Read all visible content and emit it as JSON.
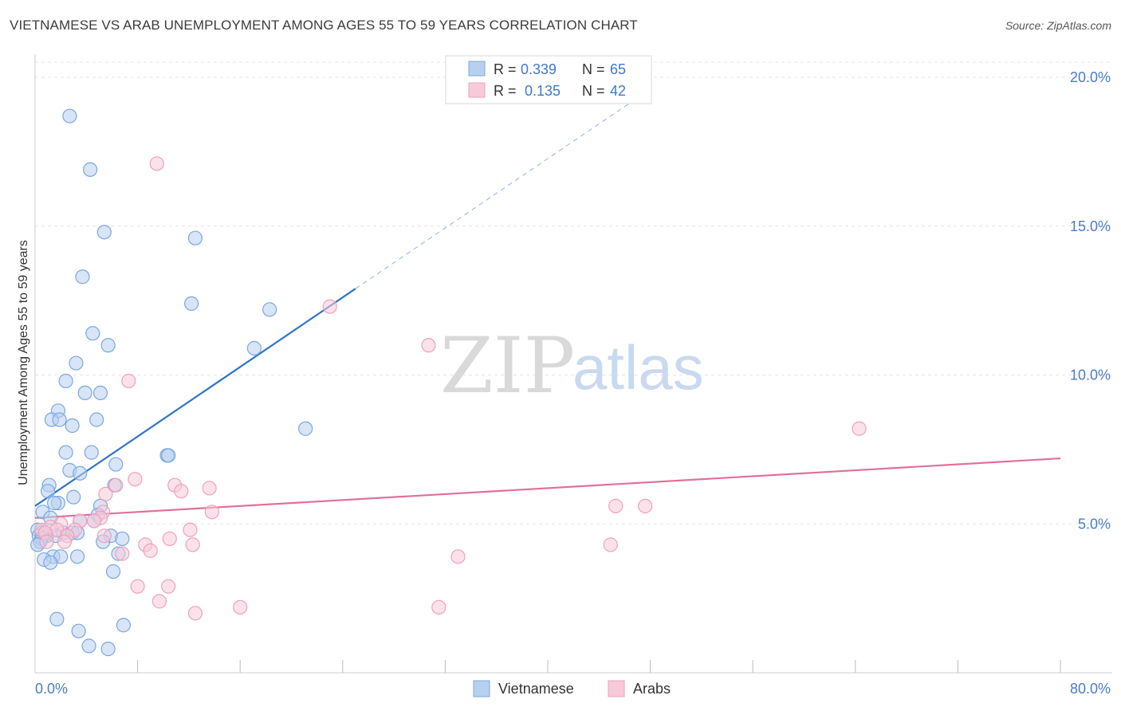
{
  "chart_data": {
    "type": "scatter",
    "title": "VIETNAMESE VS ARAB UNEMPLOYMENT AMONG AGES 55 TO 59 YEARS CORRELATION CHART",
    "source": "Source: ZipAtlas.com",
    "ylabel": "Unemployment Among Ages 55 to 59 years",
    "xlabel": "",
    "xlim": [
      0,
      80
    ],
    "ylim": [
      0,
      20
    ],
    "x_tick_labels": [
      "0.0%",
      "80.0%"
    ],
    "y_ticks": [
      5,
      10,
      15,
      20
    ],
    "y_tick_labels": [
      "5.0%",
      "10.0%",
      "15.0%",
      "20.0%"
    ],
    "watermark": {
      "zip": "ZIP",
      "atlas": "atlas"
    },
    "legend_stats": [
      {
        "r_label": "R = ",
        "r_value": "0.339",
        "n_label": "N = ",
        "n_value": "65"
      },
      {
        "r_label": "R = ",
        "r_value": "0.135",
        "n_label": "N = ",
        "n_value": "42"
      }
    ],
    "series": [
      {
        "name": "Vietnamese",
        "color": "#7aa7e0",
        "fill": "#b8d0f0",
        "line_color": "#2e74c9",
        "trend": {
          "x0": 0,
          "y0": 5.6,
          "x1": 25,
          "y1": 12.9,
          "dash_to_x": 48,
          "dash_to_y": 19.6
        },
        "points": [
          [
            2.7,
            18.7
          ],
          [
            4.3,
            16.9
          ],
          [
            5.4,
            14.8
          ],
          [
            12.5,
            14.6
          ],
          [
            3.7,
            13.3
          ],
          [
            12.2,
            12.4
          ],
          [
            18.3,
            12.2
          ],
          [
            4.5,
            11.4
          ],
          [
            5.7,
            11.0
          ],
          [
            17.1,
            10.9
          ],
          [
            3.2,
            10.4
          ],
          [
            2.4,
            9.8
          ],
          [
            5.1,
            9.4
          ],
          [
            3.9,
            9.4
          ],
          [
            1.8,
            8.8
          ],
          [
            1.3,
            8.5
          ],
          [
            1.9,
            8.5
          ],
          [
            4.8,
            8.5
          ],
          [
            2.9,
            8.3
          ],
          [
            21.1,
            8.2
          ],
          [
            2.4,
            7.4
          ],
          [
            4.4,
            7.4
          ],
          [
            10.3,
            7.3
          ],
          [
            10.4,
            7.3
          ],
          [
            6.3,
            7.0
          ],
          [
            2.7,
            6.8
          ],
          [
            3.5,
            6.7
          ],
          [
            1.1,
            6.3
          ],
          [
            1.0,
            6.1
          ],
          [
            6.2,
            6.3
          ],
          [
            3.0,
            5.9
          ],
          [
            1.8,
            5.7
          ],
          [
            1.5,
            5.7
          ],
          [
            5.1,
            5.6
          ],
          [
            0.6,
            5.4
          ],
          [
            1.2,
            5.2
          ],
          [
            4.9,
            5.3
          ],
          [
            4.6,
            5.1
          ],
          [
            3.5,
            5.1
          ],
          [
            0.2,
            4.8
          ],
          [
            0.5,
            4.7
          ],
          [
            2.2,
            4.7
          ],
          [
            2.9,
            4.7
          ],
          [
            3.3,
            4.7
          ],
          [
            0.9,
            4.6
          ],
          [
            1.6,
            4.6
          ],
          [
            0.3,
            4.6
          ],
          [
            5.9,
            4.6
          ],
          [
            0.5,
            4.5
          ],
          [
            6.8,
            4.5
          ],
          [
            0.4,
            4.4
          ],
          [
            0.2,
            4.3
          ],
          [
            5.3,
            4.4
          ],
          [
            6.5,
            4.0
          ],
          [
            1.4,
            3.9
          ],
          [
            2.0,
            3.9
          ],
          [
            3.3,
            3.9
          ],
          [
            0.7,
            3.8
          ],
          [
            1.2,
            3.7
          ],
          [
            6.1,
            3.4
          ],
          [
            1.7,
            1.8
          ],
          [
            3.4,
            1.4
          ],
          [
            6.9,
            1.6
          ],
          [
            4.2,
            0.9
          ],
          [
            5.7,
            0.8
          ]
        ]
      },
      {
        "name": "Arabs",
        "color": "#f0a0bb",
        "fill": "#f8cad9",
        "line_color": "#e0709a",
        "trend": {
          "x0": 0,
          "y0": 5.2,
          "x1": 80,
          "y1": 7.2
        },
        "points": [
          [
            9.5,
            17.1
          ],
          [
            23.0,
            12.3
          ],
          [
            30.7,
            11.0
          ],
          [
            7.3,
            9.8
          ],
          [
            64.3,
            8.2
          ],
          [
            6.3,
            6.3
          ],
          [
            7.8,
            6.5
          ],
          [
            10.9,
            6.3
          ],
          [
            11.4,
            6.1
          ],
          [
            13.6,
            6.2
          ],
          [
            5.5,
            6.0
          ],
          [
            45.3,
            5.6
          ],
          [
            47.6,
            5.6
          ],
          [
            13.8,
            5.4
          ],
          [
            5.3,
            5.4
          ],
          [
            5.1,
            5.2
          ],
          [
            3.5,
            5.1
          ],
          [
            4.6,
            5.1
          ],
          [
            2.0,
            5.0
          ],
          [
            1.2,
            4.9
          ],
          [
            1.7,
            4.8
          ],
          [
            0.5,
            4.8
          ],
          [
            3.1,
            4.8
          ],
          [
            12.1,
            4.8
          ],
          [
            0.8,
            4.7
          ],
          [
            2.5,
            4.6
          ],
          [
            5.4,
            4.6
          ],
          [
            10.5,
            4.5
          ],
          [
            0.9,
            4.4
          ],
          [
            2.3,
            4.4
          ],
          [
            8.6,
            4.3
          ],
          [
            12.3,
            4.3
          ],
          [
            44.9,
            4.3
          ],
          [
            9.0,
            4.1
          ],
          [
            6.8,
            4.0
          ],
          [
            33.0,
            3.9
          ],
          [
            10.4,
            2.9
          ],
          [
            8.0,
            2.9
          ],
          [
            9.7,
            2.4
          ],
          [
            16.0,
            2.2
          ],
          [
            31.5,
            2.2
          ],
          [
            12.5,
            2.0
          ]
        ]
      }
    ]
  }
}
